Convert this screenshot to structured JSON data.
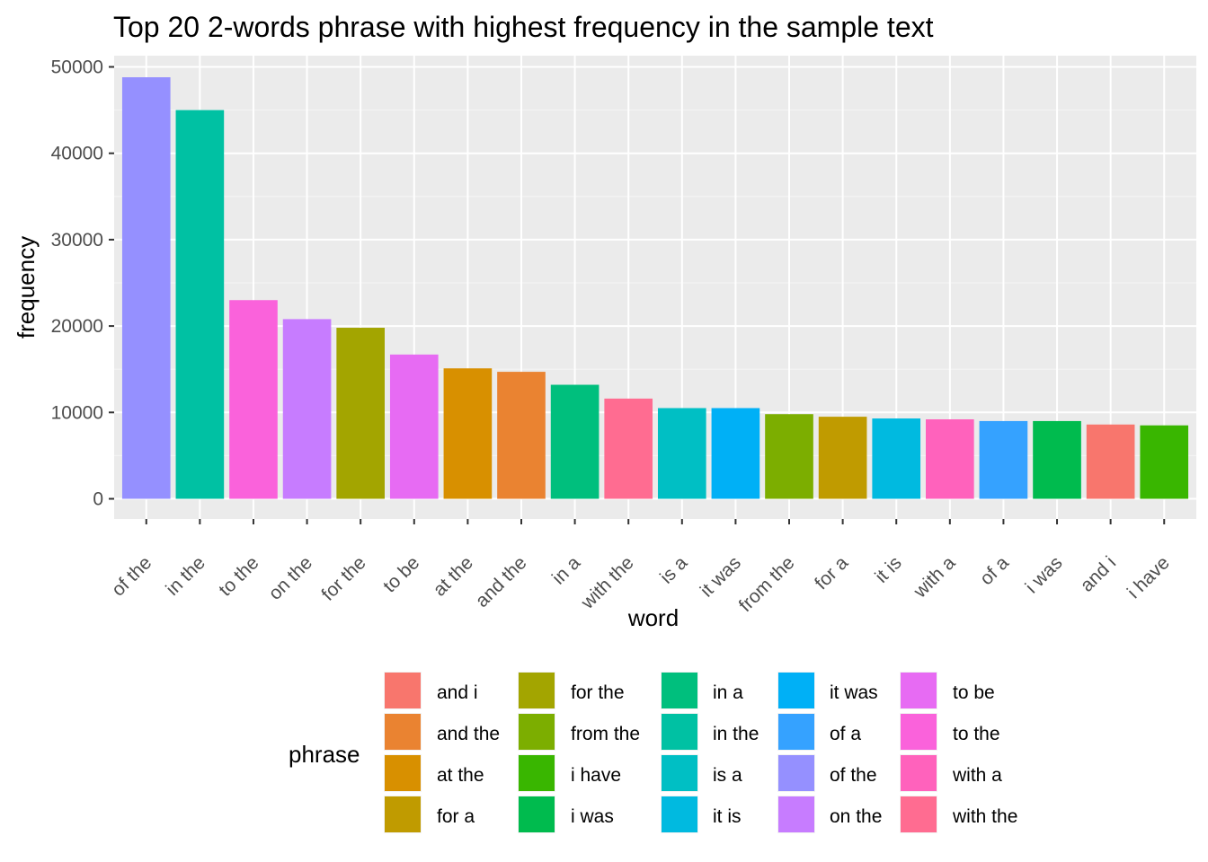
{
  "chart_data": {
    "type": "bar",
    "title": "Top 20 2-words phrase with highest frequency in the sample text",
    "xlabel": "word",
    "ylabel": "frequency",
    "ylim": [
      0,
      51000
    ],
    "yticks": [
      0,
      10000,
      20000,
      30000,
      40000,
      50000
    ],
    "ytick_labels": [
      "0",
      "10000",
      "20000",
      "30000",
      "40000",
      "50000"
    ],
    "grid": true,
    "legend_title": "phrase",
    "legend_placement": "bottom",
    "categories": [
      "of the",
      "in the",
      "to the",
      "on the",
      "for the",
      "to be",
      "at the",
      "and the",
      "in a",
      "with the",
      "is a",
      "it was",
      "from the",
      "for a",
      "it is",
      "with a",
      "of a",
      "i was",
      "and i",
      "i have"
    ],
    "values": [
      48800,
      45000,
      23000,
      20800,
      19800,
      16700,
      15100,
      14700,
      13200,
      11600,
      10500,
      10500,
      9800,
      9500,
      9300,
      9200,
      9000,
      9000,
      8600,
      8500
    ],
    "colors": {
      "and i": "#F8766D",
      "and the": "#EA8331",
      "at the": "#D89000",
      "for a": "#C09B00",
      "for the": "#A3A500",
      "from the": "#7CAE00",
      "i have": "#39B600",
      "i was": "#00BB4E",
      "in a": "#00BF7D",
      "in the": "#00C1A3",
      "is a": "#00BFC4",
      "it is": "#00BAE0",
      "it was": "#00B0F6",
      "of a": "#35A2FF",
      "of the": "#9590FF",
      "on the": "#C77CFF",
      "to be": "#E76BF3",
      "to the": "#FA62DB",
      "with a": "#FF62BC",
      "with the": "#FF6C91"
    },
    "legend_entries": [
      "and i",
      "and the",
      "at the",
      "for a",
      "for the",
      "from the",
      "i have",
      "i was",
      "in a",
      "in the",
      "is a",
      "it is",
      "it was",
      "of a",
      "of the",
      "on the",
      "to be",
      "to the",
      "with a",
      "with the"
    ]
  }
}
